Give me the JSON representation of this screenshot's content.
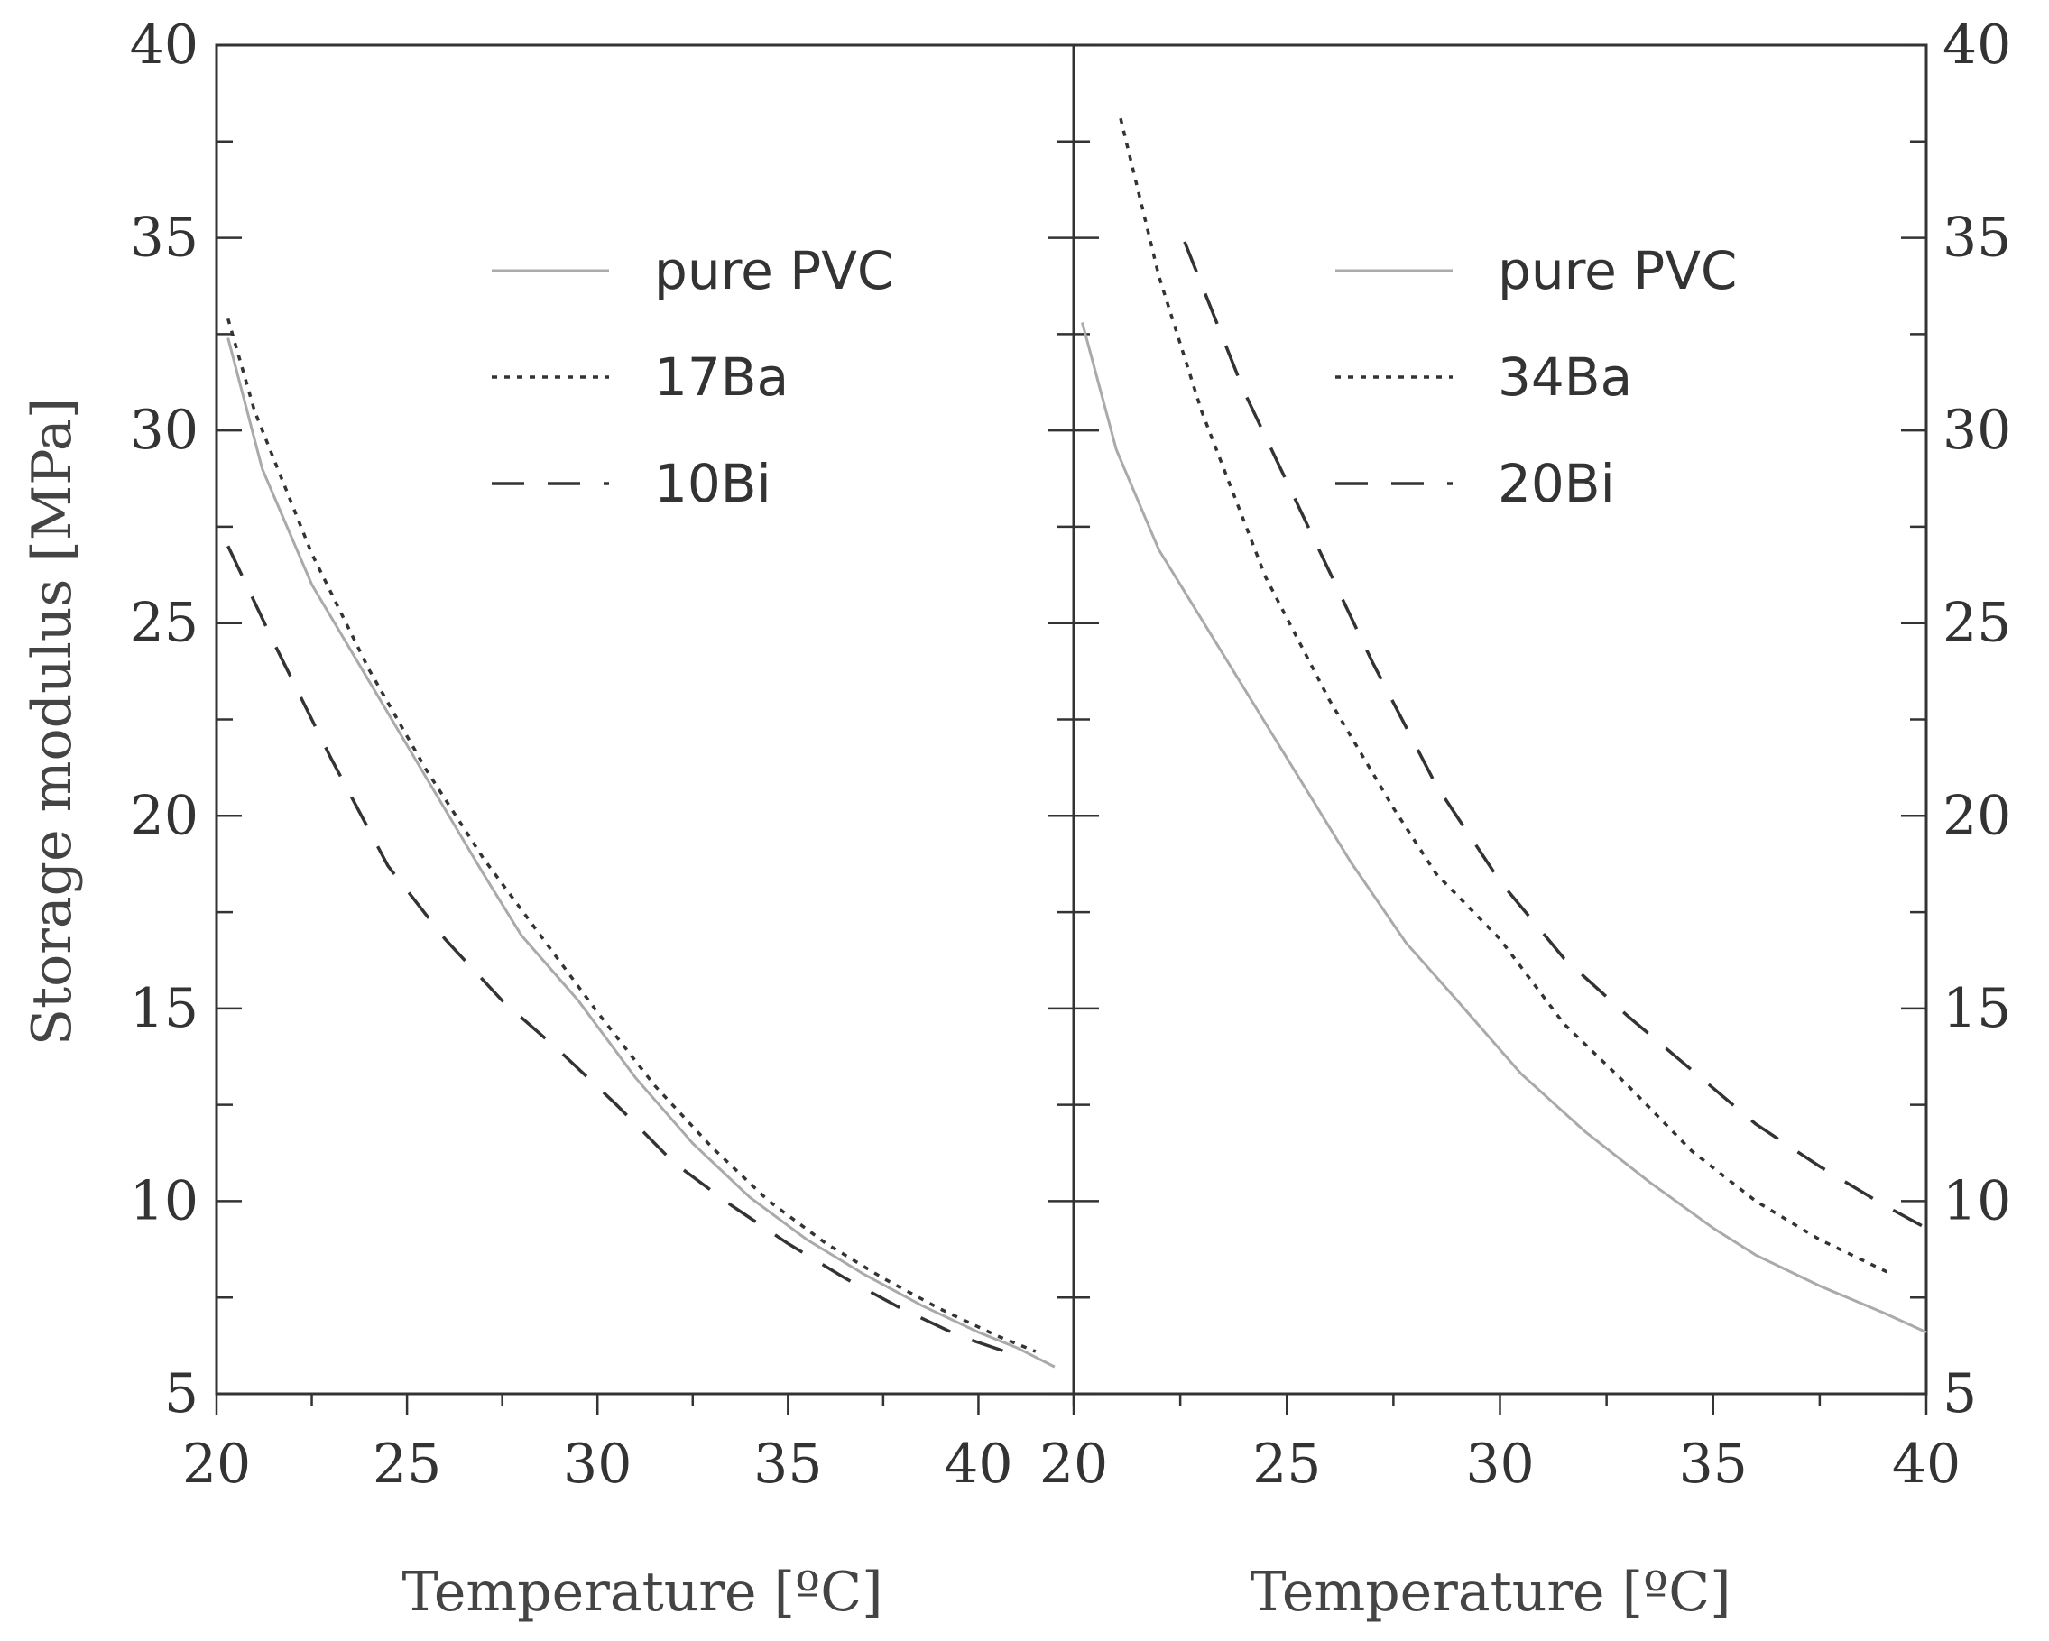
{
  "chart_data": [
    {
      "type": "line",
      "panel": "left",
      "xlabel": "Temperature [ºC]",
      "ylabel": "Storage modulus [MPa]",
      "xlim": [
        20,
        42.5
      ],
      "ylim": [
        5,
        40
      ],
      "xticks": [
        20,
        25,
        30,
        35,
        40
      ],
      "yticks": [
        5,
        10,
        15,
        20,
        25,
        30,
        35,
        40
      ],
      "legend_position": "top-right",
      "series": [
        {
          "name": "pure PVC",
          "style": "solid",
          "color": "#aaaaaa",
          "x": [
            20.3,
            21.2,
            22.5,
            24,
            25.5,
            27,
            28,
            29.5,
            31,
            32.5,
            34,
            35.5,
            37,
            38.5,
            40,
            41,
            42
          ],
          "y": [
            32.4,
            29.0,
            26.0,
            23.5,
            21.0,
            18.5,
            16.9,
            15.2,
            13.2,
            11.5,
            10.1,
            9.0,
            8.1,
            7.3,
            6.6,
            6.2,
            5.7
          ]
        },
        {
          "name": "17Ba",
          "style": "dotted",
          "color": "#333333",
          "x": [
            20.3,
            21,
            22.5,
            24,
            25.5,
            27,
            28.5,
            30,
            31.5,
            33,
            34.5,
            36,
            37.5,
            39,
            40.5,
            41.5
          ],
          "y": [
            32.9,
            30.5,
            26.8,
            23.8,
            21.2,
            18.9,
            16.9,
            14.9,
            13.0,
            11.4,
            10.0,
            8.9,
            8.0,
            7.2,
            6.5,
            6.1
          ]
        },
        {
          "name": "10Bi",
          "style": "dashed",
          "color": "#333333",
          "x": [
            20.3,
            21.5,
            23,
            24.5,
            26,
            27.5,
            29,
            30.5,
            32,
            33.5,
            35,
            36.5,
            38,
            39.5,
            41
          ],
          "y": [
            27.0,
            24.5,
            21.5,
            18.7,
            16.8,
            15.2,
            13.9,
            12.5,
            11.0,
            9.9,
            8.9,
            8.0,
            7.2,
            6.5,
            6.0
          ]
        }
      ],
      "legend_labels": [
        "pure PVC",
        "17Ba",
        "10Bi"
      ]
    },
    {
      "type": "line",
      "panel": "right",
      "xlabel": "Temperature [ºC]",
      "ylabel": "",
      "xlim": [
        20,
        40
      ],
      "ylim": [
        5,
        40
      ],
      "xticks": [
        20,
        25,
        30,
        35,
        40
      ],
      "yticks": [
        5,
        10,
        15,
        20,
        25,
        30,
        35,
        40
      ],
      "legend_position": "top-right",
      "series": [
        {
          "name": "pure PVC",
          "style": "solid",
          "color": "#aaaaaa",
          "x": [
            20.2,
            21,
            22,
            23.5,
            25,
            26.5,
            27.8,
            29,
            30.5,
            32,
            33.5,
            35,
            36,
            37.5,
            39,
            40
          ],
          "y": [
            32.8,
            29.5,
            26.9,
            24.2,
            21.5,
            18.8,
            16.7,
            15.2,
            13.3,
            11.8,
            10.5,
            9.3,
            8.6,
            7.8,
            7.1,
            6.6
          ]
        },
        {
          "name": "34Ba",
          "style": "dotted",
          "color": "#333333",
          "x": [
            21.1,
            22,
            23,
            24.5,
            26,
            27.5,
            28.5,
            30,
            31.5,
            33,
            34.5,
            36,
            37.5,
            39.2
          ],
          "y": [
            38.1,
            34.0,
            30.5,
            26.2,
            23.0,
            20.2,
            18.5,
            16.8,
            14.6,
            13.0,
            11.3,
            10.0,
            9.0,
            8.1
          ]
        },
        {
          "name": "20Bi",
          "style": "dashed",
          "color": "#333333",
          "x": [
            22.6,
            24,
            25.5,
            27,
            28.5,
            30,
            31.5,
            33,
            34.5,
            36,
            37.5,
            39,
            40
          ],
          "y": [
            34.9,
            31.0,
            27.5,
            24.0,
            20.8,
            18.3,
            16.3,
            14.8,
            13.4,
            12.0,
            10.9,
            9.9,
            9.3
          ]
        }
      ],
      "legend_labels": [
        "pure PVC",
        "34Ba",
        "20Bi"
      ]
    }
  ]
}
